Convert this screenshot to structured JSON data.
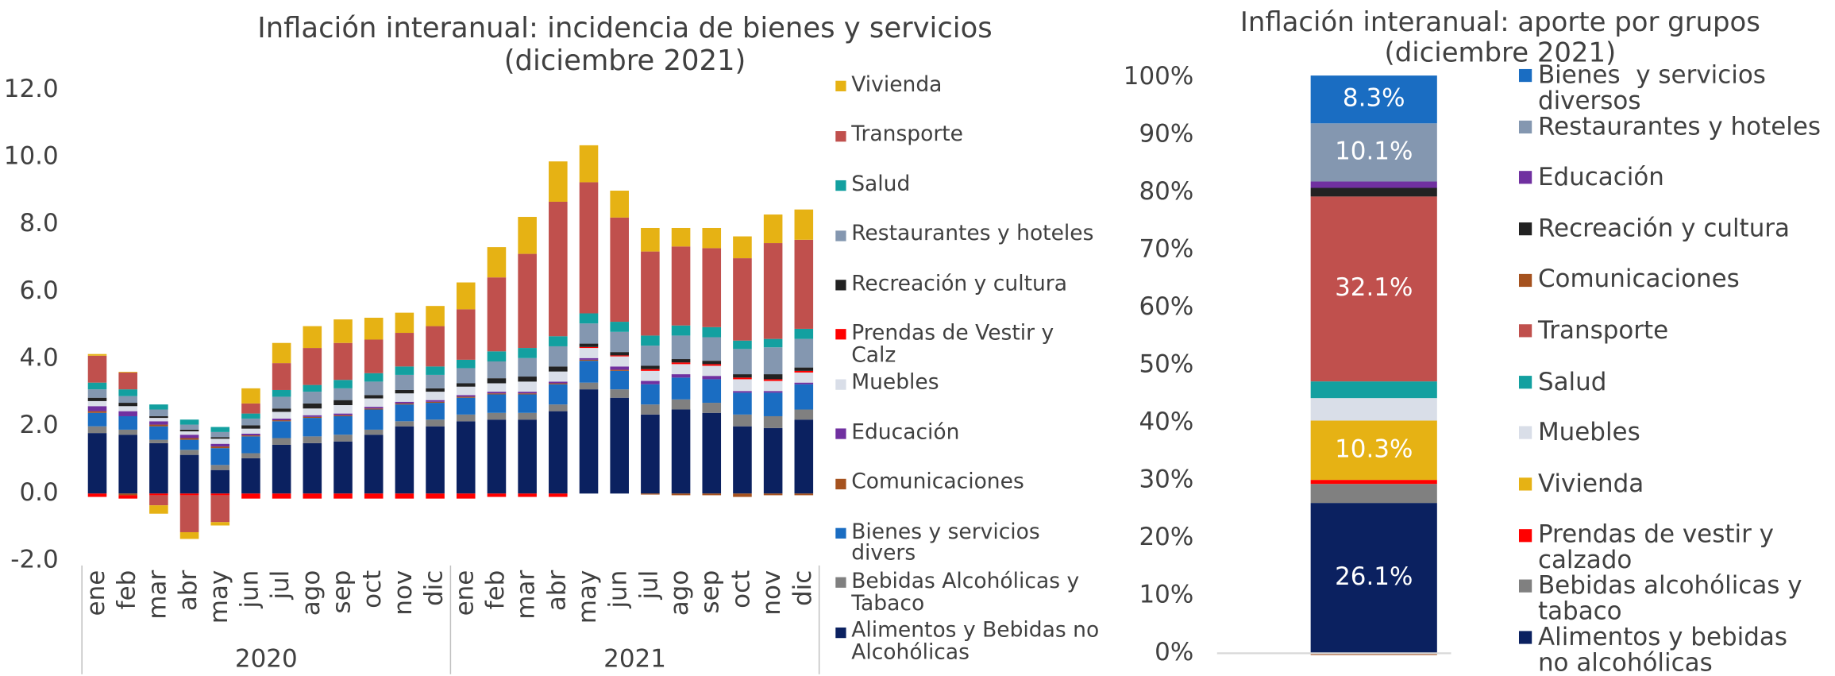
{
  "chart_data": [
    {
      "type": "bar",
      "stacked": true,
      "title": "Inflación interanual: incidencia de bienes y servicios",
      "subtitle": "(diciembre 2021)",
      "categories": [
        "ene",
        "feb",
        "mar",
        "abr",
        "may",
        "jun",
        "jul",
        "ago",
        "sep",
        "oct",
        "nov",
        "dic",
        "ene",
        "feb",
        "mar",
        "abr",
        "may",
        "jun",
        "jul",
        "ago",
        "sep",
        "oct",
        "nov",
        "dic"
      ],
      "groups": [
        "2020",
        "2021"
      ],
      "ylim": [
        -2,
        12
      ],
      "yticks": [
        {
          "value": -2,
          "label": "-2.0"
        },
        {
          "value": 0,
          "label": "0.0"
        },
        {
          "value": 2,
          "label": "2.0"
        },
        {
          "value": 4,
          "label": "4.0"
        },
        {
          "value": 6,
          "label": "6.0"
        },
        {
          "value": 8,
          "label": "8.0"
        },
        {
          "value": 10,
          "label": "10.0"
        },
        {
          "value": 12,
          "label": "12.0"
        }
      ],
      "series": [
        {
          "name": "Alimentos y Bebidas no Alcohólicas",
          "color": "#0b2160",
          "values": [
            1.8,
            1.75,
            1.5,
            1.15,
            0.7,
            1.05,
            1.45,
            1.5,
            1.55,
            1.75,
            2.0,
            2.0,
            2.15,
            2.2,
            2.2,
            2.45,
            3.1,
            2.85,
            2.35,
            2.5,
            2.4,
            2.0,
            1.95,
            2.2
          ]
        },
        {
          "name": "Bebidas Alcohólicas y Tabaco",
          "color": "#808080",
          "values": [
            0.2,
            0.15,
            0.1,
            0.15,
            0.15,
            0.15,
            0.2,
            0.2,
            0.2,
            0.15,
            0.15,
            0.2,
            0.2,
            0.2,
            0.2,
            0.2,
            0.2,
            0.25,
            0.3,
            0.3,
            0.3,
            0.35,
            0.35,
            0.3
          ]
        },
        {
          "name": "Bienes y servicios divers",
          "color": "#1a6dc2",
          "values": [
            0.4,
            0.4,
            0.4,
            0.3,
            0.5,
            0.5,
            0.5,
            0.55,
            0.55,
            0.6,
            0.5,
            0.5,
            0.5,
            0.55,
            0.55,
            0.6,
            0.65,
            0.55,
            0.6,
            0.65,
            0.7,
            0.65,
            0.7,
            0.75
          ]
        },
        {
          "name": "Comunicaciones",
          "color": "#a5521f",
          "values": [
            0.05,
            -0.05,
            0.05,
            0.05,
            0.05,
            0.03,
            0.03,
            0.03,
            0.03,
            0.03,
            0.03,
            0.03,
            0.03,
            0.03,
            0.03,
            0.03,
            0.03,
            0.03,
            -0.03,
            -0.05,
            -0.05,
            -0.1,
            -0.05,
            -0.05
          ]
        },
        {
          "name": "Educación",
          "color": "#7030a0",
          "values": [
            0.15,
            0.15,
            0.1,
            0.1,
            0.08,
            0.05,
            0.05,
            0.05,
            0.05,
            0.05,
            0.05,
            0.05,
            0.05,
            0.05,
            0.05,
            0.05,
            0.05,
            0.1,
            0.1,
            0.1,
            0.1,
            0.05,
            0.05,
            0.05
          ]
        },
        {
          "name": "Muebles",
          "color": "#d9dee8",
          "values": [
            0.15,
            0.15,
            0.1,
            0.1,
            0.15,
            0.15,
            0.2,
            0.2,
            0.25,
            0.25,
            0.25,
            0.25,
            0.25,
            0.25,
            0.3,
            0.3,
            0.3,
            0.3,
            0.3,
            0.3,
            0.3,
            0.35,
            0.3,
            0.3
          ]
        },
        {
          "name": "Prendas de Vestir y Calz",
          "color": "#ff0000",
          "values": [
            -0.1,
            -0.1,
            -0.05,
            -0.05,
            -0.05,
            -0.15,
            -0.15,
            -0.15,
            -0.15,
            -0.15,
            -0.15,
            -0.15,
            -0.15,
            -0.1,
            -0.1,
            -0.1,
            0.03,
            0.03,
            0.05,
            0.05,
            0.05,
            0.05,
            0.05,
            0.05
          ]
        },
        {
          "name": "Recreación y cultura",
          "color": "#222222",
          "values": [
            0.1,
            0.1,
            0.05,
            0.05,
            0.05,
            0.1,
            0.1,
            0.15,
            0.15,
            0.1,
            0.1,
            0.1,
            0.1,
            0.15,
            0.15,
            0.15,
            0.1,
            0.1,
            0.1,
            0.1,
            0.1,
            0.1,
            0.15,
            0.1
          ]
        },
        {
          "name": "Restaurantes y hoteles",
          "color": "#8497b0",
          "values": [
            0.25,
            0.2,
            0.2,
            0.15,
            0.15,
            0.2,
            0.35,
            0.35,
            0.35,
            0.4,
            0.45,
            0.4,
            0.45,
            0.5,
            0.55,
            0.6,
            0.6,
            0.6,
            0.6,
            0.7,
            0.7,
            0.75,
            0.8,
            0.85
          ]
        },
        {
          "name": "Salud",
          "color": "#13a0a0",
          "values": [
            0.2,
            0.2,
            0.15,
            0.15,
            0.15,
            0.15,
            0.2,
            0.2,
            0.25,
            0.25,
            0.25,
            0.25,
            0.25,
            0.3,
            0.3,
            0.3,
            0.3,
            0.3,
            0.3,
            0.3,
            0.3,
            0.25,
            0.25,
            0.3
          ]
        },
        {
          "name": "Transporte",
          "color": "#c0504d",
          "values": [
            0.8,
            0.5,
            -0.3,
            -1.1,
            -0.8,
            0.3,
            0.8,
            1.1,
            1.1,
            1.0,
            1.0,
            1.2,
            1.5,
            2.2,
            2.8,
            4.0,
            3.9,
            3.1,
            2.5,
            2.35,
            2.35,
            2.45,
            2.85,
            2.65
          ]
        },
        {
          "name": "Vivienda",
          "color": "#e6b214",
          "values": [
            0.05,
            0.02,
            -0.25,
            -0.2,
            -0.1,
            0.45,
            0.6,
            0.65,
            0.7,
            0.65,
            0.6,
            0.6,
            0.8,
            0.9,
            1.1,
            1.2,
            1.1,
            0.8,
            0.7,
            0.55,
            0.6,
            0.65,
            0.85,
            0.9
          ]
        }
      ]
    },
    {
      "type": "bar",
      "stacked": true,
      "title": "Inflación interanual: aporte por grupos",
      "subtitle": "(diciembre 2021)",
      "ylim": [
        0,
        100
      ],
      "yticks": [
        {
          "value": 0,
          "label": "0%"
        },
        {
          "value": 10,
          "label": "10%"
        },
        {
          "value": 20,
          "label": "20%"
        },
        {
          "value": 30,
          "label": "30%"
        },
        {
          "value": 40,
          "label": "40%"
        },
        {
          "value": 50,
          "label": "50%"
        },
        {
          "value": 60,
          "label": "60%"
        },
        {
          "value": 70,
          "label": "70%"
        },
        {
          "value": 80,
          "label": "80%"
        },
        {
          "value": 90,
          "label": "90%"
        },
        {
          "value": 100,
          "label": "100%"
        }
      ],
      "series": [
        {
          "name": "Alimentos y bebidas no alcohólicas",
          "color": "#0b2160",
          "values": [
            26.1
          ],
          "value_labels": [
            "26.1%"
          ]
        },
        {
          "name": "Bebidas alcohólicas y tabaco",
          "color": "#808080",
          "values": [
            3.3
          ]
        },
        {
          "name": "Prendas de vestir y calzado",
          "color": "#ff0000",
          "values": [
            0.7
          ]
        },
        {
          "name": "Vivienda",
          "color": "#e6b214",
          "values": [
            10.3
          ],
          "value_labels": [
            "10.3%"
          ]
        },
        {
          "name": "Muebles",
          "color": "#d9dee8",
          "values": [
            3.9
          ]
        },
        {
          "name": "Salud",
          "color": "#13a0a0",
          "values": [
            2.9
          ]
        },
        {
          "name": "Transporte",
          "color": "#c0504d",
          "values": [
            32.1
          ],
          "value_labels": [
            "32.1%"
          ]
        },
        {
          "name": "Comunicaciones",
          "color": "#a5521f",
          "values": [
            -0.3
          ]
        },
        {
          "name": "Recreación y cultura",
          "color": "#222222",
          "values": [
            1.5
          ]
        },
        {
          "name": "Educación",
          "color": "#7030a0",
          "values": [
            1.1
          ]
        },
        {
          "name": "Restaurantes y hoteles",
          "color": "#8497b0",
          "values": [
            10.1
          ],
          "value_labels": [
            "10.1%"
          ]
        },
        {
          "name": "Bienes  y servicios diversos",
          "color": "#1a6dc2",
          "values": [
            8.3
          ],
          "value_labels": [
            "8.3%"
          ]
        }
      ]
    }
  ]
}
